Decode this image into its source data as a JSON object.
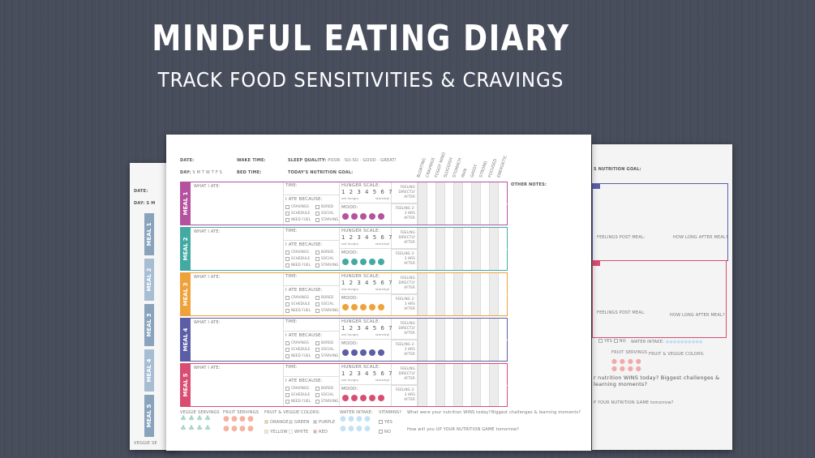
{
  "headline": "MINDFUL EATING DIARY",
  "subheadline": "TRACK FOOD SENSITIVITIES & CRAVINGS",
  "sheet": {
    "date_label": "DATE:",
    "wake_label": "WAKE TIME:",
    "sleep_label": "SLEEP QUALITY:",
    "sleep_options": "POOR  ·  SO-SO  ·  GOOD  ·  GREAT!",
    "day_label": "DAY:",
    "days": "S  M  T  W  T  F  S",
    "bed_label": "BED TIME:",
    "goal_label": "TODAY'S NUTRITION GOAL:",
    "symptoms": [
      "BLOATING",
      "CRAVINGS",
      "FOGGY MIND",
      "SLUGGISH",
      "STOMACH",
      "PAIN",
      "GASSY",
      "STRONG",
      "FOCUSED",
      "ENERGETIC"
    ],
    "other_notes": "OTHER NOTES:",
    "what_i_ate": "WHAT I ATE:",
    "time": "TIME:",
    "ate_because": "I ATE BECAUSE:",
    "reasons": [
      "CRAVINGS",
      "BORED",
      "SCHEDULE",
      "SOCIAL",
      "NEED FUEL",
      "STARVING"
    ],
    "hunger_scale": "HUNGER SCALE:",
    "scale": "1 2 3 4 5 6 7",
    "not_hungry": "not hungry",
    "starving": "starving!",
    "mood": "MOOD:",
    "feeling_after": "FEELING DIRECTLY AFTER",
    "feeling_later": "FEELING 2-3 HRS AFTER",
    "meals": [
      {
        "label": "MEAL 1",
        "color": "#b4529f"
      },
      {
        "label": "MEAL 2",
        "color": "#43aaa3"
      },
      {
        "label": "MEAL 3",
        "color": "#f0a23a"
      },
      {
        "label": "MEAL 4",
        "color": "#5b5ea6"
      },
      {
        "label": "MEAL 5",
        "color": "#d94d72"
      }
    ],
    "footer": {
      "veggie": "VEGGIE SERVINGS",
      "fruit": "FRUIT SERVINGS",
      "colors_label": "FRUIT & VEGGIE COLORS:",
      "colors": [
        {
          "name": "ORANGE",
          "color": "#f6c6a6"
        },
        {
          "name": "GREEN",
          "color": "#bfe0c6"
        },
        {
          "name": "PURPLE",
          "color": "#c9b9db"
        },
        {
          "name": "YELLOW",
          "color": "#f3eab0"
        },
        {
          "name": "WHITE",
          "color": "#ffffff"
        },
        {
          "name": "RED",
          "color": "#f2a9a9"
        }
      ],
      "water": "WATER INTAKE:",
      "vitamins": "VITAMINS?",
      "yes": "YES",
      "no": "NO",
      "wins": "What were your nutrition WINS today?",
      "challenges": "Biggest challenges & learning moments?",
      "up_game": "How will you UP YOUR NUTRITION GAME tomorrow?"
    }
  },
  "left_sheet": {
    "date": "DATE:",
    "day": "DAY: S M",
    "meals": [
      "MEAL 1",
      "MEAL 2",
      "MEAL 3",
      "MEAL 4",
      "MEAL 5"
    ],
    "footer": "VEGGIE SE"
  },
  "right_sheet": {
    "goal": "S NUTRITION GOAL:",
    "post_meal": "FEELINGS POST MEAL:",
    "how_long": "HOW LONG AFTER MEAL?",
    "yes": "YES",
    "no": "NO",
    "water": "WATER INTAKE:",
    "fruit": "FRUIT SERVINGS",
    "colors": "FRUIT & VEGGIE COLORS:",
    "wins": "r nutrition WINS today?  Biggest challenges & learning moments?",
    "up": "P YOUR NUTRITION GAME tomorrow?"
  }
}
